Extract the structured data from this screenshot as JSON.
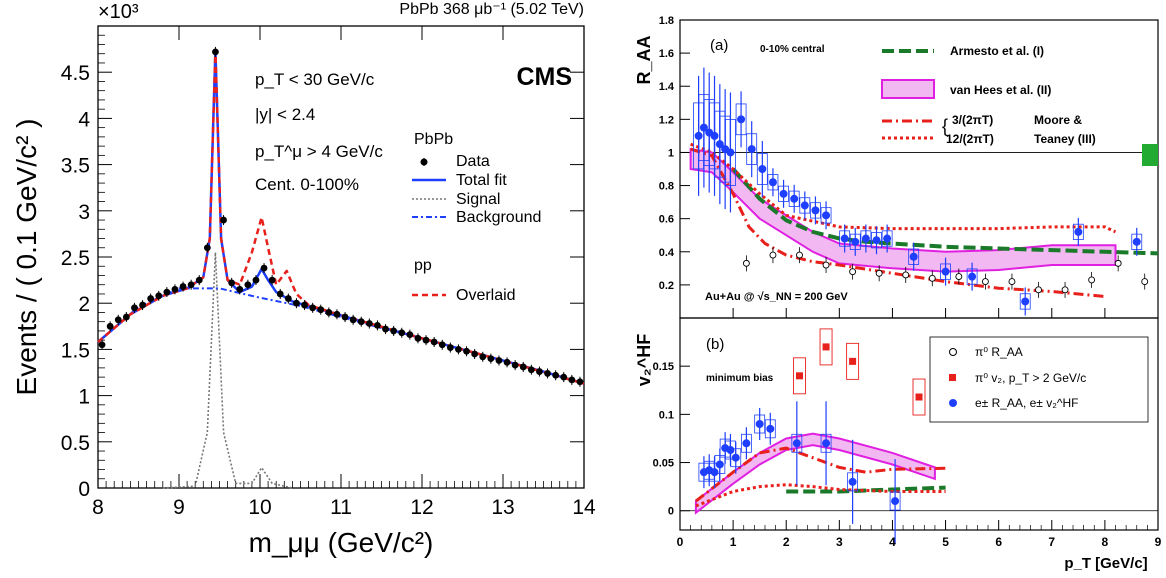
{
  "left": {
    "header": "PbPb 368 μb⁻¹ (5.02 TeV)",
    "exponent": "×10³",
    "ylabel": "Events / ( 0.1 GeV/c² )",
    "xlabel": "m_μμ (GeV/c²)",
    "cms": "CMS",
    "cuts": [
      "p_T < 30 GeV/c",
      "|y| < 2.4",
      "p_T^μ > 4 GeV/c",
      "Cent. 0-100%"
    ],
    "legend_title_pbpb": "PbPb",
    "legend_title_pp": "pp",
    "colors": {
      "fit": "#1f3fff",
      "pp": "#e8201b",
      "signal": "#777777",
      "background": "#1f3fff",
      "data": "#000000"
    }
  },
  "right": {
    "ylabel_top": "R_AA",
    "ylabel_bottom": "v₂^HF",
    "xlabel": "p_T [GeV/c]",
    "panel_a": "(a)",
    "panel_b": "(b)",
    "centrality_top": "0-10% central",
    "centrality_bottom": "minimum bias",
    "system": "Au+Au @ √s_NN = 200 GeV",
    "model_armesto": "Armesto et al. (I)",
    "model_vanhees": "van Hees et al. (II)",
    "model_moore_a": "3/(2πT)",
    "model_moore_b": "12/(2πT)",
    "model_moore_c": "Moore &",
    "model_moore_d": "Teaney (III)",
    "legend_pi0_raa": "π⁰ R_AA",
    "legend_pi0_v2": "π⁰ v₂, p_T > 2 GeV/c",
    "legend_e": "e± R_AA, e± v₂^HF",
    "colors": {
      "armesto": "#1a7a2a",
      "vanhees": "#e020e0",
      "vanhees_fill": "#f2b8f2",
      "moore": "#e8201b",
      "electron": "#1f3fff",
      "pi0_v2": "#e8201b",
      "norm_box": "#22aa33"
    }
  },
  "chart_data": [
    {
      "type": "line",
      "title": "PbPb 368 μb⁻¹ (5.02 TeV)",
      "xlabel": "m_μμ (GeV/c²)",
      "ylabel": "Events / ( 0.1 GeV/c² ) ×10³",
      "xlim": [
        8,
        14
      ],
      "ylim": [
        0,
        5
      ],
      "xticks": [
        "8",
        "9",
        "10",
        "11",
        "12",
        "13",
        "14"
      ],
      "yticks": [
        "0",
        "0.5",
        "1",
        "1.5",
        "2",
        "2.5",
        "3",
        "3.5",
        "4",
        "4.5"
      ],
      "legend": "right-middle",
      "series": [
        {
          "name": "Data",
          "kind": "points",
          "x": [
            8.05,
            8.15,
            8.25,
            8.35,
            8.45,
            8.55,
            8.65,
            8.75,
            8.85,
            8.95,
            9.05,
            9.15,
            9.25,
            9.35,
            9.45,
            9.55,
            9.65,
            9.75,
            9.85,
            9.95,
            10.05,
            10.15,
            10.25,
            10.35,
            10.45,
            10.55,
            10.65,
            10.75,
            10.85,
            10.95,
            11.05,
            11.15,
            11.25,
            11.35,
            11.45,
            11.55,
            11.65,
            11.75,
            11.85,
            11.95,
            12.05,
            12.15,
            12.25,
            12.35,
            12.45,
            12.55,
            12.65,
            12.75,
            12.85,
            12.95,
            13.05,
            13.15,
            13.25,
            13.35,
            13.45,
            13.55,
            13.65,
            13.75,
            13.85,
            13.95
          ],
          "y": [
            1.55,
            1.75,
            1.82,
            1.85,
            1.95,
            1.98,
            2.05,
            2.08,
            2.12,
            2.15,
            2.18,
            2.2,
            2.25,
            2.6,
            4.72,
            2.9,
            2.22,
            2.15,
            2.2,
            2.25,
            2.38,
            2.25,
            2.1,
            2.05,
            2.0,
            1.98,
            1.95,
            1.93,
            1.9,
            1.88,
            1.85,
            1.82,
            1.8,
            1.78,
            1.76,
            1.72,
            1.7,
            1.68,
            1.66,
            1.62,
            1.6,
            1.58,
            1.55,
            1.52,
            1.5,
            1.48,
            1.45,
            1.42,
            1.4,
            1.38,
            1.36,
            1.33,
            1.31,
            1.28,
            1.26,
            1.24,
            1.22,
            1.2,
            1.17,
            1.15
          ]
        },
        {
          "name": "Total fit",
          "kind": "line",
          "x": [
            8,
            8.4,
            8.8,
            9.1,
            9.3,
            9.38,
            9.45,
            9.52,
            9.6,
            9.75,
            9.9,
            10.02,
            10.1,
            10.2,
            10.4,
            10.8,
            11.5,
            12.5,
            13.5,
            14
          ],
          "y": [
            1.58,
            1.88,
            2.08,
            2.16,
            2.28,
            2.7,
            4.74,
            2.7,
            2.25,
            2.12,
            2.18,
            2.37,
            2.25,
            2.12,
            2.02,
            1.92,
            1.74,
            1.5,
            1.26,
            1.13
          ]
        },
        {
          "name": "Signal",
          "kind": "line",
          "x": [
            8.8,
            9.2,
            9.35,
            9.45,
            9.55,
            9.7,
            9.9,
            10.02,
            10.15,
            10.4
          ],
          "y": [
            0,
            0.02,
            0.6,
            2.55,
            0.6,
            0.05,
            0.05,
            0.22,
            0.05,
            0
          ]
        },
        {
          "name": "Background",
          "kind": "line",
          "x": [
            8,
            8.5,
            9,
            9.5,
            10,
            10.5,
            11,
            11.5,
            12,
            12.5,
            13,
            13.5,
            14
          ],
          "y": [
            1.58,
            1.96,
            2.16,
            2.16,
            2.06,
            1.97,
            1.85,
            1.73,
            1.62,
            1.5,
            1.38,
            1.26,
            1.13
          ]
        },
        {
          "name": "Overlaid",
          "kind": "line",
          "x": [
            8,
            8.4,
            8.8,
            9.1,
            9.3,
            9.38,
            9.45,
            9.52,
            9.6,
            9.75,
            9.9,
            10.02,
            10.1,
            10.2,
            10.33,
            10.45,
            10.6,
            11,
            12,
            13,
            14
          ],
          "y": [
            1.58,
            1.88,
            2.08,
            2.16,
            2.28,
            2.7,
            4.74,
            2.7,
            2.25,
            2.2,
            2.55,
            2.93,
            2.6,
            2.2,
            2.35,
            2.1,
            1.98,
            1.87,
            1.62,
            1.38,
            1.13
          ]
        }
      ]
    },
    {
      "type": "scatter",
      "panel": "(a)",
      "xlabel": "p_T [GeV/c]",
      "ylabel": "R_AA",
      "xlim": [
        0,
        9
      ],
      "ylim": [
        0,
        1.8
      ],
      "xticks": [
        "0",
        "1",
        "2",
        "3",
        "4",
        "5",
        "6",
        "7",
        "8",
        "9"
      ],
      "yticks": [
        "0",
        "0.2",
        "0.4",
        "0.6",
        "0.8",
        "1",
        "1.2",
        "1.4",
        "1.6",
        "1.8"
      ],
      "series": [
        {
          "name": "e± R_AA",
          "x": [
            0.35,
            0.45,
            0.55,
            0.65,
            0.75,
            0.85,
            0.95,
            1.15,
            1.35,
            1.55,
            1.75,
            1.95,
            2.15,
            2.35,
            2.55,
            2.75,
            3.1,
            3.3,
            3.5,
            3.7,
            3.9,
            4.4,
            5.0,
            5.5,
            6.5,
            7.5,
            8.6
          ],
          "y": [
            1.1,
            1.15,
            1.12,
            1.1,
            1.05,
            1.02,
            1.0,
            1.2,
            1.02,
            0.9,
            0.82,
            0.75,
            0.72,
            0.68,
            0.65,
            0.62,
            0.48,
            0.46,
            0.48,
            0.47,
            0.48,
            0.37,
            0.28,
            0.25,
            0.1,
            0.52,
            0.46
          ]
        },
        {
          "name": "π⁰ R_AA",
          "x": [
            1.25,
            1.75,
            2.25,
            2.75,
            3.25,
            3.75,
            4.25,
            4.75,
            5.25,
            5.75,
            6.25,
            6.75,
            7.25,
            7.75,
            8.25,
            8.75
          ],
          "y": [
            0.33,
            0.38,
            0.38,
            0.32,
            0.28,
            0.27,
            0.26,
            0.24,
            0.25,
            0.22,
            0.22,
            0.17,
            0.17,
            0.23,
            0.33,
            0.22
          ]
        },
        {
          "name": "Armesto et al. (I)",
          "x": [
            1,
            1.5,
            2,
            2.5,
            3,
            3.5,
            4,
            5,
            6,
            7,
            8,
            9
          ],
          "y": [
            0.9,
            0.72,
            0.59,
            0.52,
            0.48,
            0.46,
            0.45,
            0.43,
            0.42,
            0.41,
            0.4,
            0.39
          ]
        },
        {
          "name": "van Hees et al. (II)",
          "x": [
            0.2,
            0.6,
            1,
            1.5,
            2,
            2.5,
            3,
            4,
            5,
            6,
            7,
            8.2
          ],
          "y": [
            1.02,
            1.0,
            0.88,
            0.72,
            0.62,
            0.52,
            0.45,
            0.42,
            0.4,
            0.41,
            0.44,
            0.44
          ]
        },
        {
          "name": "3/(2πT)",
          "x": [
            0.2,
            0.6,
            1,
            1.3,
            1.6,
            2,
            2.5,
            3,
            4,
            5,
            6,
            7,
            8
          ],
          "y": [
            1.02,
            0.98,
            0.75,
            0.55,
            0.45,
            0.38,
            0.34,
            0.32,
            0.27,
            0.22,
            0.18,
            0.16,
            0.13
          ]
        },
        {
          "name": "12/(2πT)",
          "x": [
            0.2,
            0.6,
            1,
            1.5,
            2,
            3,
            4,
            5,
            6,
            7,
            8,
            8.2
          ],
          "y": [
            1.05,
            1.0,
            0.9,
            0.75,
            0.62,
            0.55,
            0.54,
            0.54,
            0.54,
            0.55,
            0.55,
            0.52
          ]
        }
      ]
    },
    {
      "type": "scatter",
      "panel": "(b)",
      "xlabel": "p_T [GeV/c]",
      "ylabel": "v₂^HF",
      "xlim": [
        0,
        9
      ],
      "ylim": [
        -0.02,
        0.2
      ],
      "xticks": [
        "0",
        "1",
        "2",
        "3",
        "4",
        "5",
        "6",
        "7",
        "8",
        "9"
      ],
      "yticks": [
        "0",
        "0.05",
        "0.1",
        "0.15"
      ],
      "series": [
        {
          "name": "e± v₂^HF",
          "x": [
            0.45,
            0.55,
            0.65,
            0.75,
            0.85,
            0.95,
            1.05,
            1.25,
            1.5,
            1.7,
            2.2,
            2.75,
            3.25,
            4.05
          ],
          "y": [
            0.04,
            0.042,
            0.04,
            0.048,
            0.065,
            0.063,
            0.055,
            0.07,
            0.09,
            0.085,
            0.07,
            0.07,
            0.03,
            0.01
          ]
        },
        {
          "name": "π⁰ v₂, p_T > 2 GeV/c",
          "x": [
            2.25,
            2.75,
            3.25,
            4.5
          ],
          "y": [
            0.14,
            0.17,
            0.155,
            0.118
          ]
        },
        {
          "name": "Armesto et al. (I)",
          "x": [
            2,
            3,
            4,
            5
          ],
          "y": [
            0.02,
            0.02,
            0.022,
            0.024
          ]
        },
        {
          "name": "van Hees et al. (II)",
          "x": [
            0.3,
            1,
            1.5,
            2,
            2.5,
            3,
            4,
            4.8
          ],
          "y": [
            0.01,
            0.04,
            0.06,
            0.075,
            0.08,
            0.075,
            0.06,
            0.045
          ]
        },
        {
          "name": "3/(2πT)",
          "x": [
            0.3,
            1,
            1.5,
            2,
            2.5,
            3,
            3.5,
            4,
            5
          ],
          "y": [
            0.01,
            0.04,
            0.06,
            0.065,
            0.055,
            0.045,
            0.04,
            0.043,
            0.044
          ]
        },
        {
          "name": "12/(2πT)",
          "x": [
            0.3,
            1,
            1.5,
            2,
            2.5,
            3,
            4,
            5
          ],
          "y": [
            0.005,
            0.02,
            0.025,
            0.027,
            0.025,
            0.022,
            0.02,
            0.02
          ]
        }
      ]
    }
  ]
}
